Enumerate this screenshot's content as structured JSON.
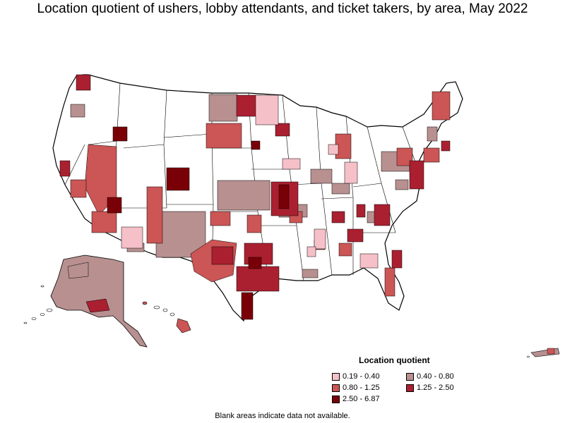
{
  "title": "Location quotient of ushers, lobby attendants, and ticket takers, by area, May 2022",
  "legend": {
    "title": "Location quotient",
    "items": [
      {
        "label": "0.19 - 0.40",
        "color": "#f6c0c8"
      },
      {
        "label": "0.40 - 0.80",
        "color": "#b89090"
      },
      {
        "label": "0.80 - 1.25",
        "color": "#cc5555"
      },
      {
        "label": "1.25 - 2.50",
        "color": "#aa2030"
      },
      {
        "label": "2.50 - 6.87",
        "color": "#7a0008"
      }
    ]
  },
  "footnote": "Blank areas indicate data not available."
}
